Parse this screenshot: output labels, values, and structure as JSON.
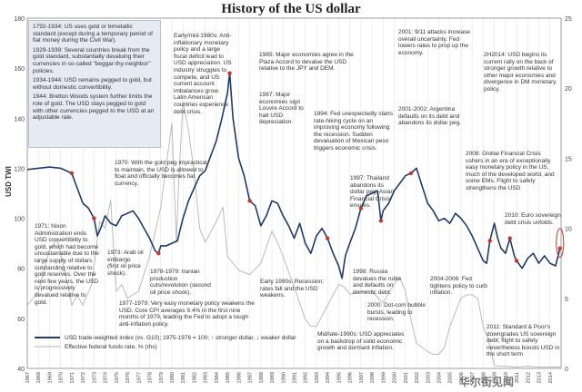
{
  "title": "History of the US dollar",
  "left_axis_label": "USD TWI",
  "chart_data": {
    "type": "line",
    "title": "History of the US dollar",
    "ylabel": "USD TWI",
    "ylim": [
      40,
      180
    ],
    "y2lim": [
      0,
      25
    ],
    "left_ticks": [
      "40",
      "60",
      "80",
      "100",
      "120",
      "140",
      "160",
      "180"
    ],
    "right_ticks": [
      "0",
      "5",
      "10",
      "15",
      "20",
      "25"
    ],
    "x_ticks": [
      "1967",
      "1968",
      "1969",
      "1970",
      "1971",
      "1972",
      "1973",
      "1974",
      "1975",
      "1976",
      "1977",
      "1978",
      "1979",
      "1980",
      "1981",
      "1982",
      "1983",
      "1984",
      "1985",
      "1986",
      "1987",
      "1988",
      "1989",
      "1990",
      "1991",
      "1992",
      "1993",
      "1994",
      "1995",
      "1996",
      "1997",
      "1998",
      "1999",
      "2000",
      "2001",
      "2002",
      "2003",
      "2004",
      "2005",
      "2006",
      "2007",
      "2008",
      "2009",
      "2010",
      "2011",
      "2012",
      "2013",
      "2014"
    ],
    "grid": "vertical",
    "series": [
      {
        "name": "USD trade-weighted index (vs. G10); 1975-1976 = 100; ↑ stronger dollar, ↓ weaker dollar",
        "axis": "left",
        "color": "#1f3b6e",
        "x": [
          1967.0,
          1968.0,
          1969.0,
          1970.0,
          1971.0,
          1971.5,
          1972.0,
          1972.5,
          1973.0,
          1973.3,
          1973.6,
          1974.0,
          1974.5,
          1975.0,
          1975.5,
          1976.0,
          1976.5,
          1977.0,
          1977.5,
          1978.0,
          1978.5,
          1978.8,
          1979.0,
          1979.5,
          1980.0,
          1980.5,
          1981.0,
          1981.5,
          1982.0,
          1982.5,
          1983.0,
          1983.5,
          1984.0,
          1984.5,
          1985.0,
          1985.2,
          1985.5,
          1986.0,
          1986.5,
          1987.0,
          1987.5,
          1988.0,
          1988.5,
          1989.0,
          1989.5,
          1990.0,
          1990.5,
          1991.0,
          1991.5,
          1992.0,
          1992.5,
          1993.0,
          1993.5,
          1994.0,
          1994.5,
          1995.0,
          1995.3,
          1995.6,
          1996.0,
          1996.5,
          1997.0,
          1997.5,
          1998.0,
          1998.5,
          1998.8,
          1999.0,
          1999.5,
          2000.0,
          2000.5,
          2001.0,
          2001.5,
          2002.0,
          2002.5,
          2003.0,
          2003.5,
          2004.0,
          2004.5,
          2005.0,
          2005.5,
          2006.0,
          2006.5,
          2007.0,
          2007.5,
          2008.0,
          2008.3,
          2008.6,
          2009.0,
          2009.3,
          2009.6,
          2010.0,
          2010.4,
          2010.8,
          2011.0,
          2011.5,
          2012.0,
          2012.5,
          2013.0,
          2013.5,
          2014.0,
          2014.5,
          2014.9
        ],
        "y": [
          119.5,
          120.0,
          120.5,
          120.0,
          118.0,
          112.0,
          106.0,
          104.0,
          100.0,
          93.0,
          96.0,
          101.0,
          98.0,
          97.0,
          101.0,
          102.0,
          103.0,
          100.0,
          96.0,
          92.0,
          87.0,
          86.0,
          89.0,
          89.0,
          90.0,
          91.0,
          100.0,
          107.0,
          112.0,
          117.0,
          119.0,
          125.0,
          131.0,
          140.0,
          150.0,
          158.0,
          140.0,
          124.0,
          117.0,
          107.0,
          105.0,
          97.0,
          101.0,
          107.0,
          106.0,
          101.0,
          97.0,
          92.0,
          98.0,
          90.0,
          86.0,
          93.0,
          96.0,
          92.0,
          86.0,
          81.0,
          76.0,
          85.0,
          90.0,
          96.0,
          104.0,
          109.0,
          110.0,
          111.0,
          99.0,
          103.0,
          106.0,
          111.0,
          114.0,
          117.0,
          118.0,
          120.0,
          113.0,
          106.0,
          103.0,
          99.0,
          100.0,
          98.0,
          102.0,
          100.0,
          97.0,
          93.0,
          88.0,
          83.0,
          82.0,
          91.0,
          98.0,
          92.0,
          88.0,
          86.0,
          92.0,
          85.0,
          83.0,
          80.0,
          84.0,
          86.0,
          82.0,
          85.0,
          82.0,
          81.0,
          88.0
        ]
      },
      {
        "name": "Effective federal funds rate, % (rhs)",
        "axis": "right",
        "color": "#b5b5b5",
        "x": [
          1967.0,
          1968.0,
          1969.0,
          1969.7,
          1970.5,
          1971.0,
          1971.5,
          1972.0,
          1972.8,
          1973.5,
          1974.0,
          1974.5,
          1975.0,
          1975.5,
          1976.0,
          1977.0,
          1978.0,
          1979.0,
          1980.0,
          1980.4,
          1980.6,
          1981.0,
          1981.5,
          1982.0,
          1982.5,
          1983.0,
          1984.0,
          1984.6,
          1985.0,
          1986.0,
          1987.0,
          1988.0,
          1989.0,
          1989.5,
          1990.0,
          1991.0,
          1992.0,
          1992.5,
          1993.0,
          1994.0,
          1995.0,
          1995.5,
          1996.0,
          1997.0,
          1998.0,
          1998.8,
          1999.0,
          2000.0,
          2000.5,
          2001.0,
          2001.5,
          2002.0,
          2003.0,
          2003.5,
          2004.0,
          2004.5,
          2005.0,
          2006.0,
          2006.5,
          2007.0,
          2007.5,
          2008.0,
          2008.5,
          2009.0,
          2010.0,
          2011.0,
          2012.0,
          2013.0,
          2014.0,
          2014.9
        ],
        "y": [
          4.5,
          5.5,
          8.5,
          9.2,
          6.5,
          4.5,
          5.2,
          4.5,
          6.0,
          10.5,
          10.0,
          12.0,
          5.5,
          6.0,
          5.0,
          5.5,
          8.0,
          11.5,
          17.5,
          9.0,
          13.0,
          19.0,
          17.0,
          14.0,
          10.0,
          9.0,
          10.5,
          11.5,
          8.0,
          7.0,
          6.7,
          7.5,
          9.8,
          9.0,
          8.0,
          5.8,
          3.5,
          3.0,
          3.0,
          4.5,
          6.0,
          5.8,
          5.3,
          5.5,
          5.5,
          4.8,
          4.7,
          6.0,
          6.5,
          5.5,
          3.5,
          1.8,
          1.2,
          1.0,
          1.0,
          1.5,
          3.0,
          5.0,
          5.25,
          5.25,
          5.0,
          3.0,
          2.0,
          0.2,
          0.15,
          0.1,
          0.15,
          0.1,
          0.1,
          0.1
        ]
      }
    ]
  },
  "annotations": {
    "box_1792": "1792-1934: US uses gold or bimetallic standard (except during a temporary period of fiat money during the Civil War).",
    "box_1929": "1929-1939: Several countries break from the gold standard, substantially devaluing their currencies in so-called \"beggar-thy-neighbor\" policies.",
    "box_1934": "1934-1944: USD remains pegged to gold, but without domestic convertibility.",
    "box_1944": "1944: Bretton Woods system further limits the role of gold. The USD stays pegged to gold with other currencies pegged to the USD at an adjustable rate.",
    "a_1970s": "Early/mid-1980s: Anti-inflationary monetary policy and a large fiscal deficit lead to USD appreciation. US industry struggles to compete, and US current account imbalances grow. Latin American countries experience debt crisis.",
    "a_1985": "1985: Major economies agree in the Plaza Accord to devalue the USD relative to the JPY and DEM.",
    "a_1987": "1987: Major economies sign Louvre Accord to halt USD depreciation.",
    "a_1994": "1994: Fed unexpectedly starts rate-hiking cycle on an improving economy following the recession. Sudden devaluation of Mexican peso triggers economic crisis.",
    "a_2001": "2001: 9/11 attacks increase overall uncertainty. Fed lowers rates to prop up the economy.",
    "a_2001b": "2001-2002: Argentina defaults on its debt and abandons its dollar peg.",
    "a_2h2014": "2H2014: USD begins its current rally on the back of stronger growth relative to other major economies and divergence in DM monetary policy.",
    "a_1970": "1970: With the gold peg impractical to maintain, the USD is allowed to float and officially becomes fiat currency.",
    "a_1997": "1997: Thailand abandons its dollar peg; Asian Financial Crisis ensues.",
    "a_2008": "2008: Global Financial Crisis ushers in an era of exceptionally easy monetary policy in the US, much of the developed world, and some EMs. Flight to safety strengthens the USD",
    "a_2010": "2010: Euro sovereign debt crisis unfolds.",
    "a_1971": "1971: Nixon Administration ends USD convertibility to gold, which had become unsustainable due to the large supply of dollars outstanding relative to gold reserves. Over the next few years, the USD is progressively devalued relative to gold.",
    "a_1973": "1973: Arab oil embargo (first oil price shock).",
    "a_1978": "1978-1979: Iranian production cuts/revolution (second oil price shock).",
    "a_1990s": "Early 1990s: Recession; rates fall and the USD weakens.",
    "a_1998": "1998: Russia devalues the ruble and defaults on domestic debt.",
    "a_2004": "2004-2006: Fed tightens policy to curb inflation.",
    "a_2000": "2000: Dot-com bubble bursts, leading to recession.",
    "a_1977": "1977-1979: Very easy monetary policy weakens the USD. Core CPI averages 9.4% in the first nine months of 1979, leading the Fed to adopt a tough anti-inflation policy.",
    "a_mid1990": "Mid/late-1990s: USD appreciates on a backdrop of solid economic growth and dormant inflation.",
    "a_2011": "2011: Standard & Poor's downgrades US sovereign debt; flight to safety nevertheless boosts USD in the short term"
  },
  "legend": {
    "usd": "USD trade-weighted index (vs. G10); 1975-1976 = 100; ↑ stronger dollar, ↓ weaker dollar",
    "ffr": "Effective federal funds rate, % (rhs)"
  },
  "watermark": "华尔街见闻"
}
